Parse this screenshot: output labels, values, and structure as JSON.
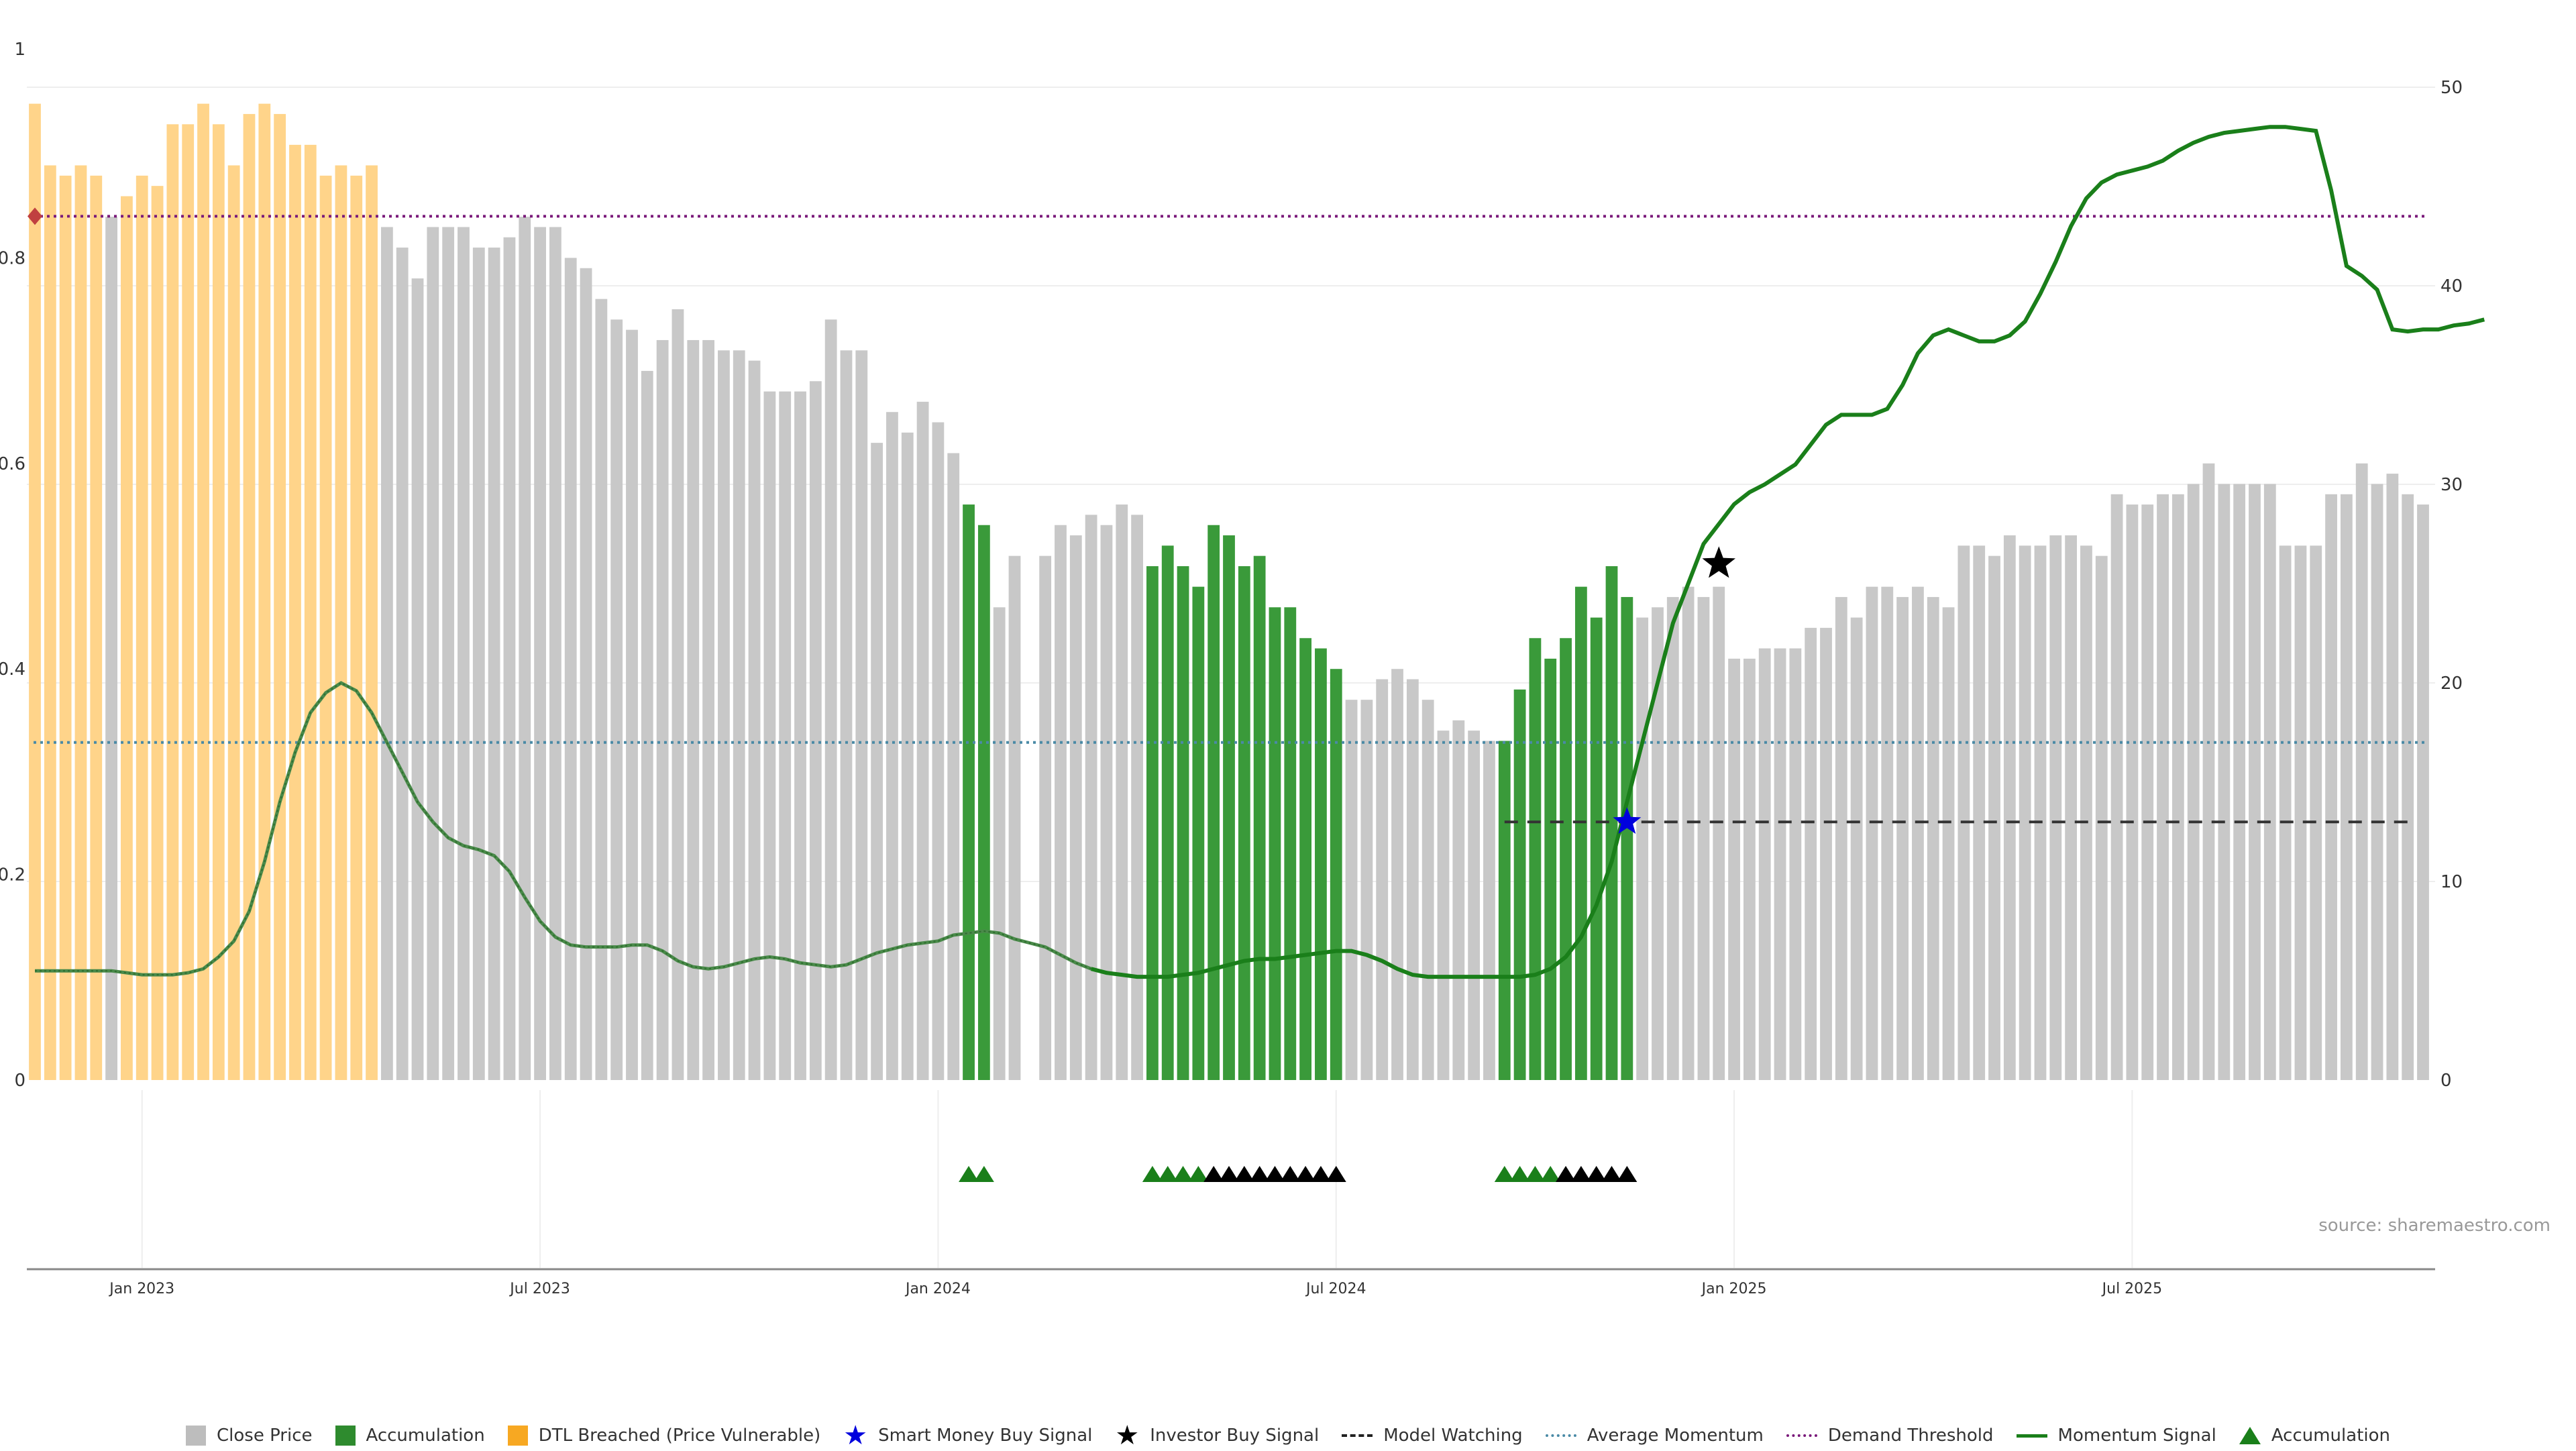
{
  "source": "source: sharemaestro.com",
  "colors": {
    "close": "#c8c8c8",
    "accumulation": "#3a9a3a",
    "dtl": "#ffd48a",
    "momentum": "#1a7f1a",
    "momentum_old": "#4a8a4a",
    "average": "#4a8aa6",
    "demand": "#7a1a7a",
    "watching": "#333333",
    "star": "#000000",
    "smart_star": "#0000dd",
    "diamond": "#c04040"
  },
  "legend": [
    {
      "label": "Close Price",
      "kind": "square",
      "color": "#bdbdbd",
      "icon": "close-price-swatch"
    },
    {
      "label": "Accumulation",
      "kind": "square",
      "color": "#2e8b2e",
      "icon": "accumulation-swatch"
    },
    {
      "label": "DTL Breached (Price Vulnerable)",
      "kind": "square",
      "color": "#f7a822",
      "icon": "dtl-swatch"
    },
    {
      "label": "Smart Money Buy Signal",
      "kind": "star",
      "color": "#0000dd",
      "icon": "blue-star-icon"
    },
    {
      "label": "Investor Buy Signal",
      "kind": "star",
      "color": "#000000",
      "icon": "black-star-icon"
    },
    {
      "label": "Model Watching",
      "kind": "dash",
      "color": "#222222",
      "icon": "dashed-line-icon"
    },
    {
      "label": "Average Momentum",
      "kind": "dot",
      "color": "#4a8aa6",
      "icon": "dotted-line-icon"
    },
    {
      "label": "Demand Threshold",
      "kind": "dot",
      "color": "#7a1a7a",
      "icon": "dotted-line-icon"
    },
    {
      "label": "Momentum Signal",
      "kind": "solid",
      "color": "#1a7f1a",
      "icon": "solid-line-icon"
    },
    {
      "label": "Accumulation",
      "kind": "triangle",
      "color": "#1a7f1a",
      "icon": "triangle-icon"
    }
  ],
  "chart_data": {
    "type": "bar",
    "left_axis": {
      "ticks": [
        "0",
        "0.2",
        "0.4",
        "0.6",
        "0.8",
        "1"
      ],
      "range": [
        0,
        1
      ]
    },
    "right_axis": {
      "ticks": [
        "0",
        "10",
        "20",
        "30",
        "40",
        "50"
      ],
      "range": [
        0,
        50
      ]
    },
    "x_ticks": [
      "Jan 2023",
      "Jul 2023",
      "Jan 2024",
      "Jul 2024",
      "Jan 2025",
      "Jul 2025"
    ],
    "x_tick_weeks": [
      7,
      33,
      59,
      85,
      111,
      137
    ],
    "bars": [
      0.95,
      0.89,
      0.88,
      0.89,
      0.88,
      0.84,
      0.86,
      0.88,
      0.87,
      0.93,
      0.93,
      0.95,
      0.93,
      0.89,
      0.94,
      0.95,
      0.94,
      0.91,
      0.91,
      0.88,
      0.89,
      0.88,
      0.89,
      0.83,
      0.81,
      0.78,
      0.83,
      0.83,
      0.83,
      0.81,
      0.81,
      0.82,
      0.84,
      0.83,
      0.83,
      0.8,
      0.79,
      0.76,
      0.74,
      0.73,
      0.69,
      0.72,
      0.75,
      0.72,
      0.72,
      0.71,
      0.71,
      0.7,
      0.67,
      0.67,
      0.67,
      0.68,
      0.74,
      0.71,
      0.71,
      0.62,
      0.65,
      0.63,
      0.66,
      0.64,
      0.61,
      0.56,
      0.54,
      0.46,
      0.51,
      0.0,
      0.51,
      0.54,
      0.53,
      0.55,
      0.54,
      0.56,
      0.55,
      0.5,
      0.52,
      0.5,
      0.48,
      0.54,
      0.53,
      0.5,
      0.51,
      0.46,
      0.46,
      0.43,
      0.42,
      0.4,
      0.37,
      0.37,
      0.39,
      0.4,
      0.39,
      0.37,
      0.34,
      0.35,
      0.34,
      0.33,
      0.33,
      0.38,
      0.43,
      0.41,
      0.43,
      0.48,
      0.45,
      0.5,
      0.47,
      0.45,
      0.46,
      0.47,
      0.48,
      0.47,
      0.48,
      0.41,
      0.41,
      0.42,
      0.42,
      0.42,
      0.44,
      0.44,
      0.47,
      0.45,
      0.48,
      0.48,
      0.47,
      0.48,
      0.47,
      0.46,
      0.52,
      0.52,
      0.51,
      0.53,
      0.52,
      0.52,
      0.53,
      0.53,
      0.52,
      0.51,
      0.57,
      0.56,
      0.56,
      0.57,
      0.57,
      0.58,
      0.6,
      0.58,
      0.58,
      0.58,
      0.58,
      0.52,
      0.52,
      0.52,
      0.57,
      0.57,
      0.6,
      0.58,
      0.59,
      0.57,
      0.56
    ],
    "bar_category_ranges": {
      "dtl": [
        [
          0,
          4
        ],
        [
          6,
          22
        ]
      ],
      "accumulation": [
        [
          61,
          62
        ],
        [
          73,
          85
        ],
        [
          96,
          104
        ]
      ]
    },
    "momentum": [
      5.5,
      5.5,
      5.5,
      5.5,
      5.5,
      5.5,
      5.4,
      5.3,
      5.3,
      5.3,
      5.4,
      5.6,
      6.2,
      7.0,
      8.5,
      11,
      14,
      16.5,
      18.5,
      19.5,
      20,
      19.6,
      18.5,
      17,
      15.5,
      14,
      13,
      12.2,
      11.8,
      11.6,
      11.3,
      10.5,
      9.2,
      8,
      7.2,
      6.8,
      6.7,
      6.7,
      6.7,
      6.8,
      6.8,
      6.5,
      6,
      5.7,
      5.6,
      5.7,
      5.9,
      6.1,
      6.2,
      6.1,
      5.9,
      5.8,
      5.7,
      5.8,
      6.1,
      6.4,
      6.6,
      6.8,
      6.9,
      7,
      7.3,
      7.4,
      7.5,
      7.4,
      7.1,
      6.9,
      6.7,
      6.3,
      5.9,
      5.6,
      5.4,
      5.3,
      5.2,
      5.2,
      5.2,
      5.3,
      5.4,
      5.6,
      5.8,
      6,
      6.1,
      6.1,
      6.2,
      6.3,
      6.4,
      6.5,
      6.5,
      6.3,
      6,
      5.6,
      5.3,
      5.2,
      5.2,
      5.2,
      5.2,
      5.2,
      5.2,
      5.2,
      5.3,
      5.6,
      6.2,
      7.2,
      8.8,
      11,
      14,
      17,
      20,
      23,
      25,
      27,
      28,
      29,
      29.6,
      30,
      30.5,
      31,
      32,
      33,
      33.5,
      33.5,
      33.5,
      33.8,
      35,
      36.6,
      37.5,
      37.8,
      37.5,
      37.2,
      37.2,
      37.5,
      38.2,
      39.6,
      41.2,
      43,
      44.4,
      45.2,
      45.6,
      45.8,
      46,
      46.3,
      46.8,
      47.2,
      47.5,
      47.7,
      47.8,
      47.9,
      48,
      48,
      47.9,
      47.8,
      44.8,
      41,
      40.5,
      39.8,
      37.8,
      37.7,
      37.8,
      37.8,
      38,
      38.1,
      38.3
    ],
    "momentum_styles": {
      "dotted_until_week": 69
    },
    "average_momentum": 17,
    "demand_threshold": 43.5,
    "model_watching": {
      "value": 13,
      "start_week": 96,
      "end_week": 155
    },
    "investor_buy_signals": [
      {
        "week": 110,
        "value": 26
      }
    ],
    "smart_money_buy_signals": [
      {
        "week": 104,
        "value": 13
      }
    ],
    "demand_marker": {
      "week": 0,
      "value": 43.5
    },
    "accumulation_triangles": {
      "green": [
        61,
        62,
        73,
        74,
        75,
        76,
        96,
        97,
        98,
        99
      ],
      "black": [
        77,
        78,
        79,
        80,
        81,
        82,
        83,
        84,
        85,
        100,
        101,
        102,
        103,
        104
      ]
    }
  }
}
